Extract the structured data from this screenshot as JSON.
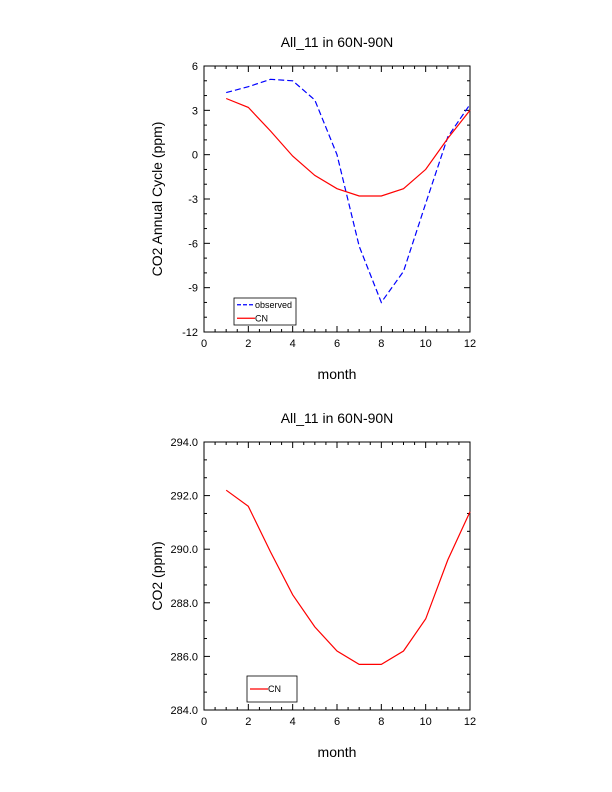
{
  "chart_data": [
    {
      "type": "line",
      "title": "All_11 in 60N-90N",
      "xlabel": "month",
      "ylabel": "CO2 Annual Cycle (ppm)",
      "xlim": [
        0,
        12
      ],
      "ylim": [
        -12,
        6
      ],
      "xticks": [
        0,
        2,
        4,
        6,
        8,
        10,
        12
      ],
      "xtick_labels": [
        "0",
        "2",
        "4",
        "6",
        "8",
        "10",
        "12"
      ],
      "yticks": [
        -12,
        -9,
        -6,
        -3,
        0,
        3,
        6
      ],
      "ytick_labels": [
        "-12",
        "-9",
        "-6",
        "-3",
        "0",
        "3",
        "6"
      ],
      "grid": false,
      "legend_position": "bottom-left",
      "series": [
        {
          "name": "observed",
          "color": "#0000ff",
          "dash": "dashed",
          "x": [
            1,
            2,
            3,
            4,
            5,
            6,
            7,
            8,
            9,
            10,
            11,
            12
          ],
          "values": [
            4.2,
            4.6,
            5.1,
            5.0,
            3.7,
            0.0,
            -6.2,
            -10.0,
            -7.9,
            -3.3,
            1.2,
            3.4
          ]
        },
        {
          "name": "CN",
          "color": "#ff0000",
          "dash": "solid",
          "x": [
            1,
            2,
            3,
            4,
            5,
            6,
            7,
            8,
            9,
            10,
            11,
            12
          ],
          "values": [
            3.8,
            3.2,
            1.6,
            -0.1,
            -1.4,
            -2.3,
            -2.8,
            -2.8,
            -2.3,
            -1.0,
            1.1,
            3.0
          ]
        }
      ]
    },
    {
      "type": "line",
      "title": "All_11 in 60N-90N",
      "xlabel": "month",
      "ylabel": "CO2 (ppm)",
      "xlim": [
        0,
        12
      ],
      "ylim": [
        284.0,
        294.0
      ],
      "xticks": [
        0,
        2,
        4,
        6,
        8,
        10,
        12
      ],
      "xtick_labels": [
        "0",
        "2",
        "4",
        "6",
        "8",
        "10",
        "12"
      ],
      "yticks": [
        284.0,
        286.0,
        288.0,
        290.0,
        292.0,
        294.0
      ],
      "ytick_labels": [
        "284.0",
        "286.0",
        "288.0",
        "290.0",
        "292.0",
        "294.0"
      ],
      "grid": false,
      "legend_position": "bottom-left",
      "series": [
        {
          "name": "CN",
          "color": "#ff0000",
          "dash": "solid",
          "x": [
            1,
            2,
            3,
            4,
            5,
            6,
            7,
            8,
            9,
            10,
            11,
            12
          ],
          "values": [
            292.2,
            291.6,
            289.9,
            288.3,
            287.1,
            286.2,
            285.7,
            285.7,
            286.2,
            287.4,
            289.6,
            291.4
          ]
        }
      ]
    }
  ]
}
